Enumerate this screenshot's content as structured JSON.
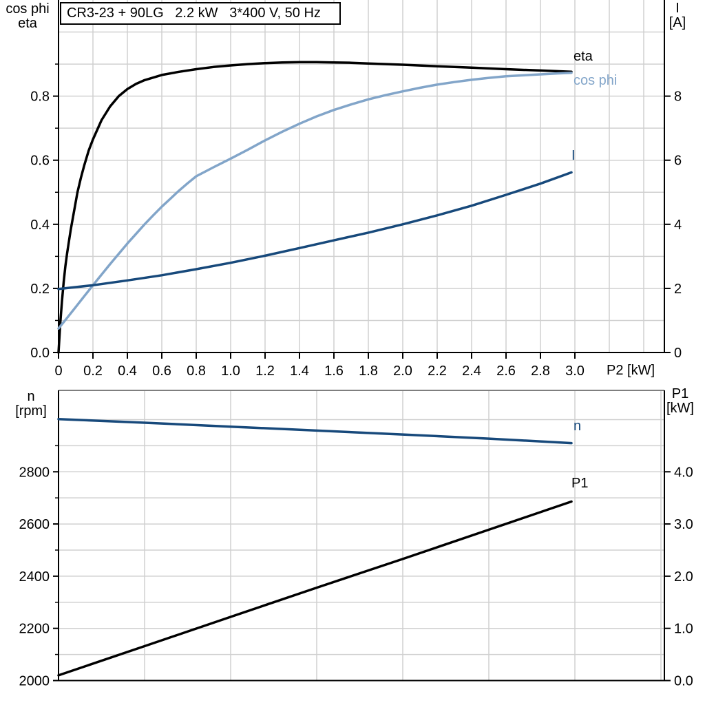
{
  "colors": {
    "grid": "#d0d0d0",
    "axis": "#000000",
    "border_gray": "#7f7f7f",
    "dark_blue": "#17497B",
    "light_blue": "#82A5C9",
    "black": "#000000",
    "background": "#ffffff"
  },
  "axis_headers": {
    "top_left": [
      "cos phi",
      "eta"
    ],
    "top_right": [
      "I",
      "[A]"
    ],
    "bottom_left": [
      "n",
      "[rpm]"
    ],
    "bottom_right": [
      "P1",
      "[kW]"
    ]
  },
  "chart_data": [
    {
      "type": "line",
      "title": "CR3-23 + 90LG   2.2 kW   3*400 V, 50 Hz",
      "xlabel": "P2 [kW]",
      "xlim": [
        0,
        3.52
      ],
      "grid": true,
      "legend_position": "end-of-curve",
      "x_ticks": [
        0,
        0.2,
        0.4,
        0.6,
        0.8,
        1.0,
        1.2,
        1.4,
        1.6,
        1.8,
        2.0,
        2.2,
        2.4,
        2.6,
        2.8,
        3.0
      ],
      "x_tick_labels": [
        "0",
        "0.2",
        "0.4",
        "0.6",
        "0.8",
        "1.0",
        "1.2",
        "1.4",
        "1.6",
        "1.8",
        "2.0",
        "2.2",
        "2.4",
        "2.6",
        "2.8",
        "3.0"
      ],
      "x_gridlines": [
        0.2,
        0.4,
        0.6,
        0.8,
        1.0,
        1.2,
        1.4,
        1.6,
        1.8,
        2.0,
        2.2,
        2.4,
        2.6,
        2.8,
        3.0,
        3.2,
        3.4
      ],
      "left_axis": {
        "title": "cos phi / eta",
        "lim": [
          0,
          1.1
        ],
        "ticks": [
          0,
          0.2,
          0.4,
          0.6,
          0.8
        ],
        "tick_labels": [
          "0.0",
          "0.2",
          "0.4",
          "0.6",
          "0.8"
        ],
        "minor_ticks": [
          0.1,
          0.3,
          0.5,
          0.7,
          0.9
        ],
        "gridlines": [
          0.1,
          0.2,
          0.3,
          0.4,
          0.5,
          0.6,
          0.7,
          0.8,
          0.9,
          1.0
        ]
      },
      "right_axis": {
        "title": "I [A]",
        "lim": [
          0,
          11
        ],
        "ticks": [
          0,
          2,
          4,
          6,
          8
        ],
        "tick_labels": [
          "0",
          "2",
          "4",
          "6",
          "8"
        ]
      },
      "series": [
        {
          "name": "eta",
          "axis": "left",
          "color": "#000000",
          "points": [
            [
              0,
              0
            ],
            [
              0.01,
              0.09
            ],
            [
              0.02,
              0.16
            ],
            [
              0.03,
              0.22
            ],
            [
              0.04,
              0.27
            ],
            [
              0.05,
              0.31
            ],
            [
              0.07,
              0.38
            ],
            [
              0.09,
              0.44
            ],
            [
              0.11,
              0.5
            ],
            [
              0.13,
              0.545
            ],
            [
              0.15,
              0.585
            ],
            [
              0.175,
              0.63
            ],
            [
              0.2,
              0.665
            ],
            [
              0.25,
              0.725
            ],
            [
              0.3,
              0.768
            ],
            [
              0.35,
              0.8
            ],
            [
              0.4,
              0.822
            ],
            [
              0.45,
              0.838
            ],
            [
              0.5,
              0.85
            ],
            [
              0.6,
              0.866
            ],
            [
              0.7,
              0.876
            ],
            [
              0.8,
              0.884
            ],
            [
              0.9,
              0.891
            ],
            [
              1.0,
              0.896
            ],
            [
              1.1,
              0.9
            ],
            [
              1.2,
              0.903
            ],
            [
              1.3,
              0.905
            ],
            [
              1.4,
              0.906
            ],
            [
              1.5,
              0.906
            ],
            [
              1.6,
              0.905
            ],
            [
              1.7,
              0.904
            ],
            [
              1.8,
              0.902
            ],
            [
              1.9,
              0.9
            ],
            [
              2.0,
              0.898
            ],
            [
              2.2,
              0.893
            ],
            [
              2.4,
              0.889
            ],
            [
              2.6,
              0.884
            ],
            [
              2.8,
              0.88
            ],
            [
              2.98,
              0.876
            ]
          ]
        },
        {
          "name": "cos phi",
          "axis": "left",
          "color": "#82A5C9",
          "points": [
            [
              0,
              0.075
            ],
            [
              0.05,
              0.108
            ],
            [
              0.1,
              0.142
            ],
            [
              0.15,
              0.176
            ],
            [
              0.2,
              0.21
            ],
            [
              0.25,
              0.243
            ],
            [
              0.3,
              0.276
            ],
            [
              0.35,
              0.308
            ],
            [
              0.4,
              0.34
            ],
            [
              0.45,
              0.37
            ],
            [
              0.5,
              0.4
            ],
            [
              0.55,
              0.428
            ],
            [
              0.6,
              0.455
            ],
            [
              0.65,
              0.48
            ],
            [
              0.7,
              0.505
            ],
            [
              0.75,
              0.528
            ],
            [
              0.8,
              0.55
            ],
            [
              0.9,
              0.578
            ],
            [
              1.0,
              0.605
            ],
            [
              1.1,
              0.633
            ],
            [
              1.2,
              0.662
            ],
            [
              1.3,
              0.689
            ],
            [
              1.4,
              0.714
            ],
            [
              1.5,
              0.737
            ],
            [
              1.6,
              0.757
            ],
            [
              1.7,
              0.774
            ],
            [
              1.8,
              0.79
            ],
            [
              1.9,
              0.803
            ],
            [
              2.0,
              0.815
            ],
            [
              2.1,
              0.826
            ],
            [
              2.2,
              0.836
            ],
            [
              2.3,
              0.844
            ],
            [
              2.4,
              0.851
            ],
            [
              2.5,
              0.857
            ],
            [
              2.6,
              0.862
            ],
            [
              2.7,
              0.865
            ],
            [
              2.8,
              0.868
            ],
            [
              2.9,
              0.871
            ],
            [
              2.98,
              0.873
            ]
          ]
        },
        {
          "name": "I",
          "axis": "right",
          "color": "#17497B",
          "points": [
            [
              0,
              1.98
            ],
            [
              0.2,
              2.1
            ],
            [
              0.4,
              2.25
            ],
            [
              0.6,
              2.41
            ],
            [
              0.8,
              2.6
            ],
            [
              1.0,
              2.8
            ],
            [
              1.2,
              3.02
            ],
            [
              1.4,
              3.26
            ],
            [
              1.6,
              3.5
            ],
            [
              1.8,
              3.74
            ],
            [
              2.0,
              4.0
            ],
            [
              2.2,
              4.28
            ],
            [
              2.4,
              4.58
            ],
            [
              2.6,
              4.92
            ],
            [
              2.8,
              5.27
            ],
            [
              2.98,
              5.62
            ]
          ]
        }
      ]
    },
    {
      "type": "line",
      "title": "",
      "xlabel": "",
      "xlim": [
        0,
        3.52
      ],
      "grid": true,
      "x_gridlines": [
        0.5,
        1.0,
        1.5,
        2.0,
        2.5,
        3.0,
        3.5
      ],
      "left_axis": {
        "title": "n [rpm]",
        "lim": [
          2000,
          3112
        ],
        "ticks": [
          2000,
          2200,
          2400,
          2600,
          2800
        ],
        "tick_labels": [
          "2000",
          "2200",
          "2400",
          "2600",
          "2800"
        ],
        "minor_ticks": [
          2100,
          2300,
          2500,
          2700,
          2900
        ],
        "gridlines": [
          2100,
          2200,
          2300,
          2400,
          2500,
          2600,
          2700,
          2800,
          2900,
          3000
        ]
      },
      "right_axis": {
        "title": "P1 [kW]",
        "lim": [
          0,
          5.56
        ],
        "ticks": [
          0,
          1,
          2,
          3,
          4
        ],
        "tick_labels": [
          "0.0",
          "1.0",
          "2.0",
          "3.0",
          "4.0"
        ]
      },
      "series": [
        {
          "name": "n",
          "axis": "left",
          "color": "#17497B",
          "points": [
            [
              0,
              3002
            ],
            [
              0.5,
              2988
            ],
            [
              1.0,
              2973
            ],
            [
              1.5,
              2958
            ],
            [
              2.0,
              2943
            ],
            [
              2.5,
              2927
            ],
            [
              2.98,
              2910
            ]
          ]
        },
        {
          "name": "P1",
          "axis": "right",
          "color": "#000000",
          "points": [
            [
              0,
              0.1
            ],
            [
              0.5,
              0.66
            ],
            [
              1.0,
              1.22
            ],
            [
              1.5,
              1.78
            ],
            [
              2.0,
              2.33
            ],
            [
              2.5,
              2.89
            ],
            [
              2.98,
              3.43
            ]
          ]
        }
      ]
    }
  ]
}
